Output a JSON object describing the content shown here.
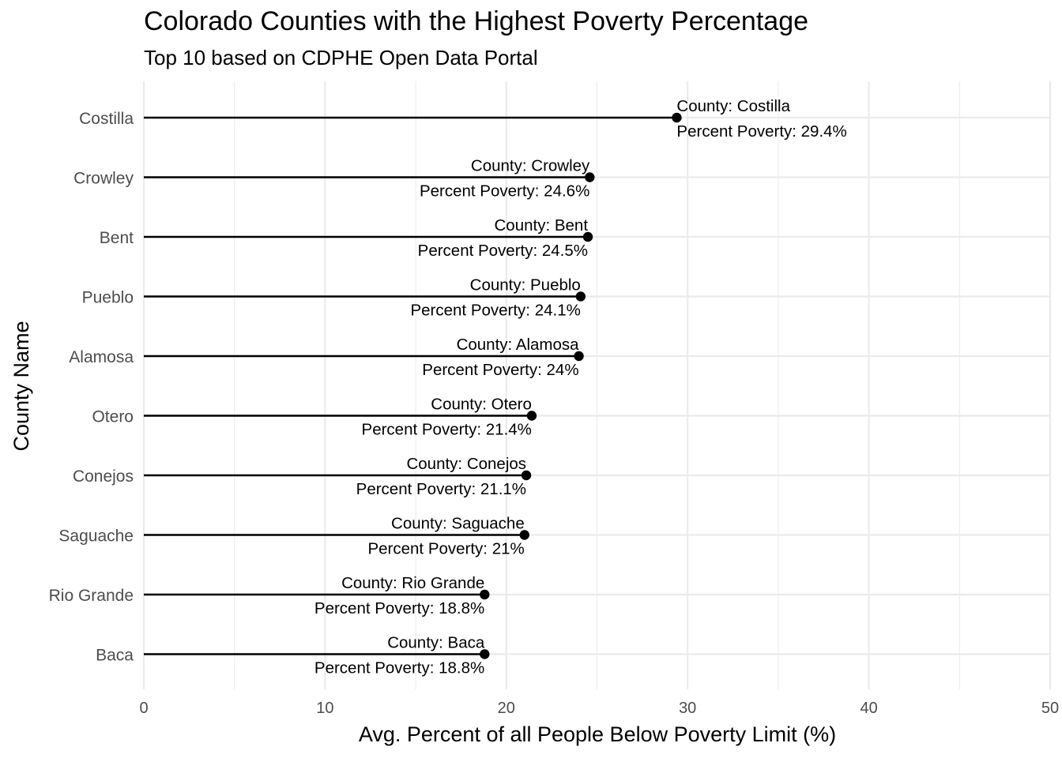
{
  "chart_data": {
    "type": "lollipop",
    "title": "Colorado Counties with the Highest Poverty Percentage",
    "subtitle": "Top 10 based on CDPHE Open Data Portal",
    "xlabel": "Avg. Percent of all People Below Poverty Limit (%)",
    "ylabel": "County Name",
    "xlim": [
      0,
      50
    ],
    "xticks": [
      0,
      10,
      20,
      30,
      40,
      50
    ],
    "grid": true,
    "legend": "none",
    "categories": [
      "Costilla",
      "Crowley",
      "Bent",
      "Pueblo",
      "Alamosa",
      "Otero",
      "Conejos",
      "Saguache",
      "Rio Grande",
      "Baca"
    ],
    "values": [
      29.4,
      24.6,
      24.5,
      24.1,
      24,
      21.4,
      21.1,
      21,
      18.8,
      18.8
    ],
    "annotations": [
      {
        "county": "County: Costilla",
        "poverty": "Percent Poverty: 29.4%",
        "placement": "right"
      },
      {
        "county": "County: Crowley",
        "poverty": "Percent Poverty: 24.6%",
        "placement": "left"
      },
      {
        "county": "County: Bent",
        "poverty": "Percent Poverty: 24.5%",
        "placement": "left"
      },
      {
        "county": "County: Pueblo",
        "poverty": "Percent Poverty: 24.1%",
        "placement": "left"
      },
      {
        "county": "County: Alamosa",
        "poverty": "Percent Poverty: 24%",
        "placement": "left"
      },
      {
        "county": "County: Otero",
        "poverty": "Percent Poverty: 21.4%",
        "placement": "left"
      },
      {
        "county": "County: Conejos",
        "poverty": "Percent Poverty: 21.1%",
        "placement": "left"
      },
      {
        "county": "County: Saguache",
        "poverty": "Percent Poverty: 21%",
        "placement": "left"
      },
      {
        "county": "County: Rio Grande",
        "poverty": "Percent Poverty: 18.8%",
        "placement": "left"
      },
      {
        "county": "County: Baca",
        "poverty": "Percent Poverty: 18.8%",
        "placement": "left"
      }
    ],
    "colors": {
      "mark": "#000000",
      "grid": "#ebebeb",
      "tick_text": "#4d4d4d"
    }
  }
}
